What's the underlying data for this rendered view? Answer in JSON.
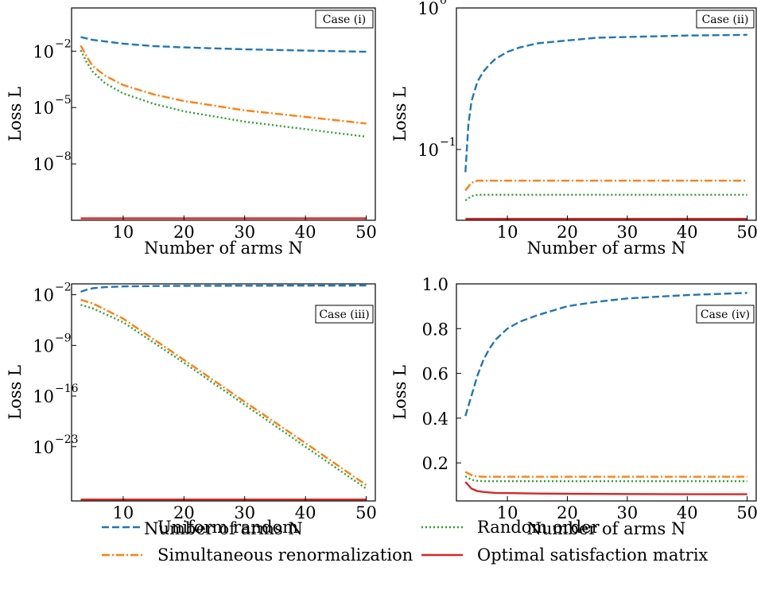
{
  "chart_data": [
    {
      "type": "line",
      "case_label": "Case (i)",
      "xlabel": "Number of arms N",
      "ylabel": "Loss L",
      "yscale": "log",
      "xlim": [
        1.5,
        51.5
      ],
      "ylim_log10": [
        -11,
        0.3
      ],
      "xticks": [
        10,
        20,
        30,
        40,
        50
      ],
      "yticks": [
        {
          "exp": -2,
          "label": "10"
        },
        {
          "exp": -5,
          "label": "10"
        },
        {
          "exp": -8,
          "label": "10"
        }
      ],
      "ytick_exps": [
        "−2",
        "−5",
        "−8"
      ],
      "series": [
        {
          "key": "uniform",
          "x": [
            3,
            5,
            10,
            15,
            20,
            30,
            40,
            50
          ],
          "y": [
            -1.25,
            -1.4,
            -1.6,
            -1.73,
            -1.8,
            -1.9,
            -1.97,
            -2.03
          ]
        },
        {
          "key": "simul",
          "x": [
            3,
            4,
            5,
            7,
            10,
            15,
            20,
            30,
            40,
            50
          ],
          "y": [
            -1.7,
            -2.3,
            -2.8,
            -3.3,
            -3.8,
            -4.3,
            -4.65,
            -5.15,
            -5.5,
            -5.85
          ]
        },
        {
          "key": "random",
          "x": [
            3,
            4,
            5,
            7,
            10,
            15,
            20,
            30,
            40,
            50
          ],
          "y": [
            -1.95,
            -2.6,
            -3.1,
            -3.7,
            -4.25,
            -4.8,
            -5.2,
            -5.75,
            -6.15,
            -6.55
          ]
        },
        {
          "key": "optimal",
          "x": [
            3,
            50
          ],
          "y": [
            -10.9,
            -10.9
          ]
        }
      ]
    },
    {
      "type": "line",
      "case_label": "Case (ii)",
      "xlabel": "Number of arms N",
      "ylabel": "Loss L",
      "yscale": "log",
      "xlim": [
        1.5,
        51.5
      ],
      "ylim_log10": [
        -1.5,
        0
      ],
      "xticks": [
        10,
        20,
        30,
        40,
        50
      ],
      "yticks": [
        {
          "exp": 0,
          "label": "10"
        },
        {
          "exp": -1,
          "label": "10"
        }
      ],
      "ytick_exps": [
        "0",
        "−1"
      ],
      "series": [
        {
          "key": "uniform",
          "x": [
            3,
            3.5,
            4,
            5,
            6,
            7,
            8,
            10,
            12,
            15,
            20,
            25,
            30,
            40,
            50
          ],
          "y": [
            -1.16,
            -0.82,
            -0.66,
            -0.52,
            -0.45,
            -0.4,
            -0.36,
            -0.31,
            -0.28,
            -0.25,
            -0.23,
            -0.21,
            -0.205,
            -0.195,
            -0.19
          ]
        },
        {
          "key": "simul",
          "x": [
            3,
            4,
            5,
            50
          ],
          "y": [
            -1.29,
            -1.235,
            -1.22,
            -1.22
          ]
        },
        {
          "key": "random",
          "x": [
            3,
            4,
            5,
            50
          ],
          "y": [
            -1.36,
            -1.33,
            -1.32,
            -1.32
          ]
        },
        {
          "key": "optimal",
          "x": [
            3,
            50
          ],
          "y": [
            -1.49,
            -1.49
          ]
        }
      ]
    },
    {
      "type": "line",
      "case_label": "Case (iii)",
      "xlabel": "Number of arms N",
      "ylabel": "Loss L",
      "yscale": "log",
      "xlim": [
        1.5,
        51.5
      ],
      "ylim_log10": [
        -30.5,
        -0.5
      ],
      "xticks": [
        10,
        20,
        30,
        40,
        50
      ],
      "yticks": [
        {
          "exp": -2,
          "label": "10"
        },
        {
          "exp": -9,
          "label": "10"
        },
        {
          "exp": -16,
          "label": "10"
        },
        {
          "exp": -23,
          "label": "10"
        }
      ],
      "ytick_exps": [
        "−2",
        "−9",
        "−16",
        "−23"
      ],
      "series": [
        {
          "key": "uniform",
          "x": [
            3,
            4,
            5,
            7,
            10,
            15,
            20,
            30,
            40,
            50
          ],
          "y": [
            -1.6,
            -1.3,
            -1.1,
            -0.95,
            -0.85,
            -0.8,
            -0.78,
            -0.75,
            -0.74,
            -0.73
          ]
        },
        {
          "key": "simul",
          "x": [
            3,
            5,
            10,
            20,
            30,
            40,
            50
          ],
          "y": [
            -2.7,
            -3.2,
            -5.3,
            -11.0,
            -16.8,
            -22.5,
            -28.3
          ]
        },
        {
          "key": "random",
          "x": [
            3,
            5,
            10,
            20,
            30,
            40,
            50
          ],
          "y": [
            -3.4,
            -3.9,
            -5.8,
            -11.4,
            -17.2,
            -23.0,
            -28.8
          ]
        },
        {
          "key": "optimal",
          "x": [
            3,
            50
          ],
          "y": [
            -30.3,
            -30.3
          ]
        }
      ]
    },
    {
      "type": "line",
      "case_label": "Case (iv)",
      "xlabel": "Number of arms N",
      "ylabel": "Loss L",
      "yscale": "linear",
      "xlim": [
        1.5,
        51.5
      ],
      "ylim": [
        0.03,
        1.0
      ],
      "xticks": [
        10,
        20,
        30,
        40,
        50
      ],
      "yticks": [
        {
          "value": 0.2,
          "label": "0.2"
        },
        {
          "value": 0.4,
          "label": "0.4"
        },
        {
          "value": 0.6,
          "label": "0.6"
        },
        {
          "value": 0.8,
          "label": "0.8"
        },
        {
          "value": 1.0,
          "label": "1.0"
        }
      ],
      "series": [
        {
          "key": "uniform",
          "x": [
            3,
            4,
            5,
            6,
            7,
            8,
            10,
            12,
            15,
            20,
            25,
            30,
            40,
            50
          ],
          "y": [
            0.41,
            0.5,
            0.59,
            0.66,
            0.71,
            0.75,
            0.8,
            0.83,
            0.86,
            0.9,
            0.92,
            0.935,
            0.95,
            0.96
          ]
        },
        {
          "key": "simul",
          "x": [
            3,
            4,
            5,
            6,
            50
          ],
          "y": [
            0.16,
            0.145,
            0.14,
            0.138,
            0.138
          ]
        },
        {
          "key": "random",
          "x": [
            3,
            4,
            5,
            6,
            50
          ],
          "y": [
            0.14,
            0.125,
            0.12,
            0.118,
            0.118
          ]
        },
        {
          "key": "optimal",
          "x": [
            3,
            4,
            5,
            6,
            8,
            10,
            15,
            20,
            30,
            40,
            50
          ],
          "y": [
            0.115,
            0.085,
            0.074,
            0.07,
            0.066,
            0.065,
            0.063,
            0.062,
            0.061,
            0.06,
            0.06
          ]
        }
      ]
    }
  ],
  "legend": {
    "placement": "bottom",
    "entries": [
      {
        "key": "uniform",
        "label": "Uniform random",
        "color": "#1f77b4",
        "dash": "dashed"
      },
      {
        "key": "random",
        "label": "Random order",
        "color": "#2ca02c",
        "dash": "dotted"
      },
      {
        "key": "simul",
        "label": "Simultaneous renormalization",
        "color": "#ff7f0e",
        "dash": "dashdot"
      },
      {
        "key": "optimal",
        "label": "Optimal satisfaction matrix",
        "color": "#d62728",
        "dash": "solid"
      }
    ]
  }
}
